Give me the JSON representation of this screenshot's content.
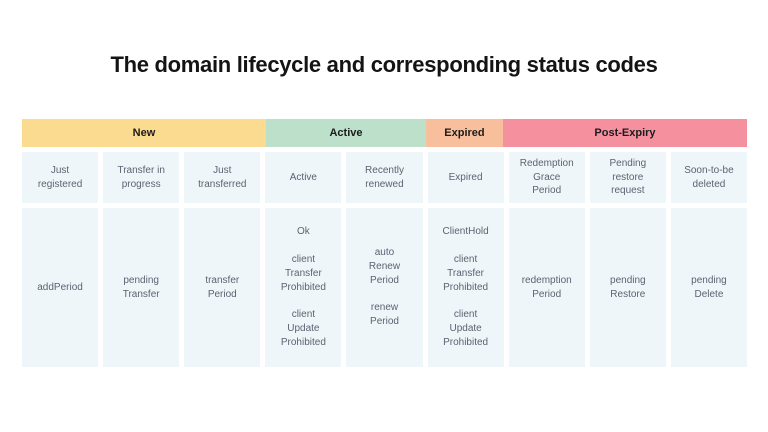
{
  "page": {
    "title": "The domain lifecycle and corresponding status codes"
  },
  "colors": {
    "phase_new": "#FADB8F",
    "phase_active": "#BCE0C9",
    "phase_expired": "#F8BF9D",
    "phase_post_expiry": "#F5909F",
    "cell_background": "#EFF6F9",
    "cell_text": "#5A6472",
    "title_text": "#141414"
  },
  "table": {
    "phases": [
      {
        "label": "New",
        "columns_spanned": 3,
        "color": "#FADB8F"
      },
      {
        "label": "Active",
        "columns_spanned": 2,
        "color": "#BCE0C9"
      },
      {
        "label": "Expired",
        "columns_spanned": 1,
        "color": "#F8BF9D"
      },
      {
        "label": "Post-Expiry",
        "columns_spanned": 3,
        "color": "#F5909F"
      }
    ],
    "stages": [
      "Just\nregistered",
      "Transfer in\nprogress",
      "Just\ntransferred",
      "Active",
      "Recently\nrenewed",
      "Expired",
      "Redemption\nGrace\nPeriod",
      "Pending\nrestore\nrequest",
      "Soon-to-be\ndeleted"
    ],
    "status_codes": [
      "addPeriod",
      "pending\nTransfer",
      "transfer\nPeriod",
      "Ok\n\nclient\nTransfer\nProhibited\n\nclient\nUpdate\nProhibited",
      "auto\nRenew\nPeriod\n\nrenew\nPeriod",
      "ClientHold\n\nclient\nTransfer\nProhibited\n\nclient\nUpdate\nProhibited",
      "redemption\nPeriod",
      "pending\nRestore",
      "pending\nDelete"
    ]
  }
}
